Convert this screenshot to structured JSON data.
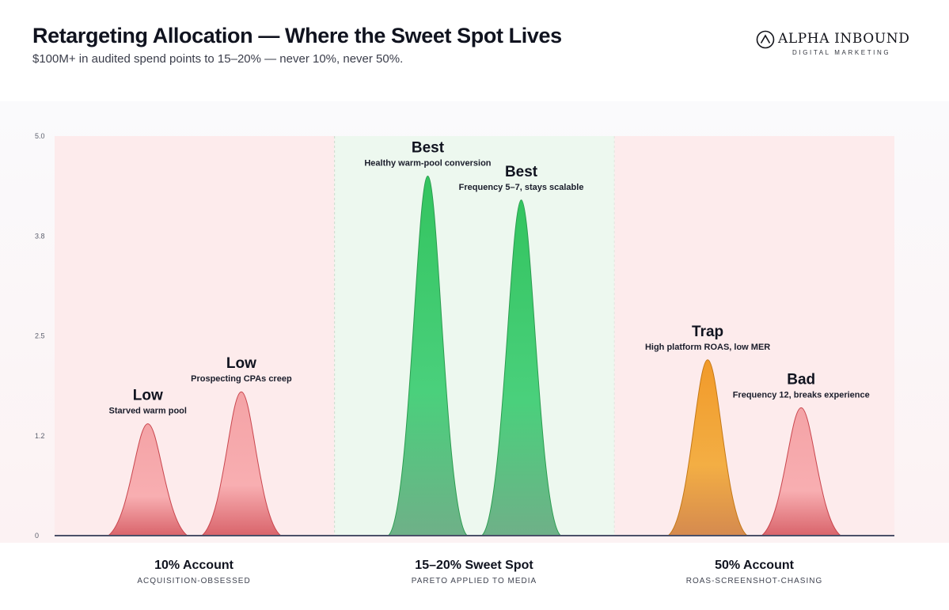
{
  "header": {
    "title": "Retargeting Allocation — Where the Sweet Spot Lives",
    "subtitle": "$100M+ in audited spend points to 15–20% — never 10%, never 50%.",
    "logo_name": "ALPHA INBOUND",
    "logo_tagline": "DIGITAL MARKETING"
  },
  "colors": {
    "bad_zone": "#fdebec",
    "good_zone": "#edf8ef",
    "red": "#f6a7aa",
    "red_line": "#c9464e",
    "green": "#3ecb6c",
    "green_line": "#2b9c50",
    "orange": "#f2a434",
    "orange_line": "#c47816",
    "baseline": "#4a5068",
    "axis_text": "#5a5e6b"
  },
  "chart_data": {
    "type": "area",
    "ylim": [
      0,
      5.0
    ],
    "yticks": [
      "5.0",
      "3.8",
      "2.5",
      "1.2",
      "0"
    ],
    "ytick_values": [
      5.0,
      3.75,
      2.5,
      1.25,
      0
    ],
    "grid": false,
    "groups": [
      {
        "name": "10% Account",
        "subtitle": "ACQUISITION-OBSESSED",
        "zone": "bad"
      },
      {
        "name": "15–20% Sweet Spot",
        "subtitle": "PARETO APPLIED TO MEDIA",
        "zone": "good"
      },
      {
        "name": "50% Account",
        "subtitle": "ROAS-SCREENSHOT-CHASING",
        "zone": "bad"
      }
    ],
    "peaks": [
      {
        "group": 0,
        "value": 1.4,
        "label": "Low",
        "note": "Starved warm pool",
        "color": "red"
      },
      {
        "group": 0,
        "value": 1.8,
        "label": "Low",
        "note": "Prospecting CPAs creep",
        "color": "red"
      },
      {
        "group": 1,
        "value": 4.5,
        "label": "Best",
        "note": "Healthy warm-pool conversion",
        "color": "green"
      },
      {
        "group": 1,
        "value": 4.2,
        "label": "Best",
        "note": "Frequency 5–7, stays scalable",
        "color": "green"
      },
      {
        "group": 2,
        "value": 2.2,
        "label": "Trap",
        "note": "High platform ROAS, low MER",
        "color": "orange"
      },
      {
        "group": 2,
        "value": 1.6,
        "label": "Bad",
        "note": "Frequency 12, breaks experience",
        "color": "red"
      }
    ]
  }
}
